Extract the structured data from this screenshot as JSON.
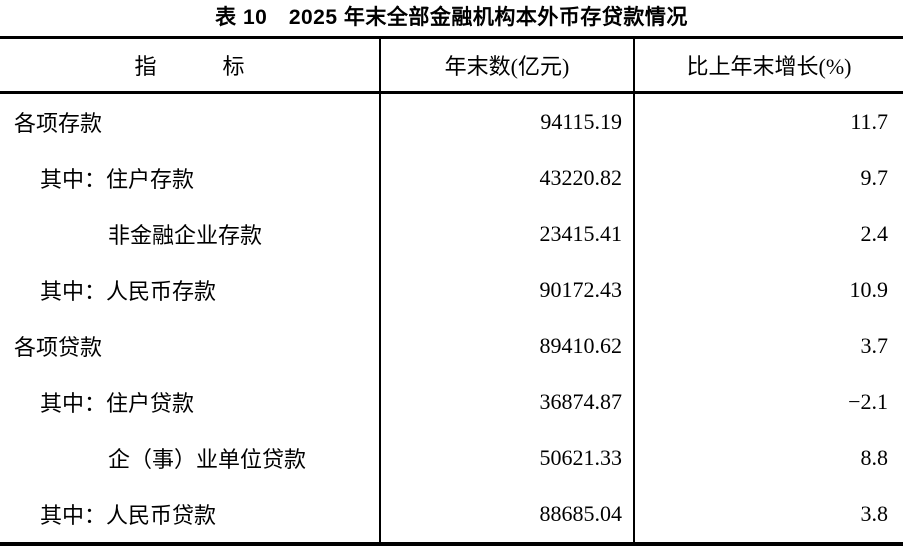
{
  "title": "表 10　2025 年末全部金融机构本外币存贷款情况",
  "table": {
    "headers": {
      "indicator": "指　　　标",
      "amount": "年末数(亿元)",
      "growth": "比上年末增长(%)"
    },
    "rows": [
      {
        "indicator": "各项存款",
        "amount": "94115.19",
        "growth": "11.7"
      },
      {
        "indicator": "其中：住户存款",
        "amount": "43220.82",
        "growth": "9.7"
      },
      {
        "indicator": "非金融企业存款",
        "amount": "23415.41",
        "growth": "2.4"
      },
      {
        "indicator": "其中：人民币存款",
        "amount": "90172.43",
        "growth": "10.9"
      },
      {
        "indicator": "各项贷款",
        "amount": "89410.62",
        "growth": "3.7"
      },
      {
        "indicator": "其中：住户贷款",
        "amount": "36874.87",
        "growth": "−2.1"
      },
      {
        "indicator": "企（事）业单位贷款",
        "amount": "50621.33",
        "growth": "8.8"
      },
      {
        "indicator": "其中：人民币贷款",
        "amount": "88685.04",
        "growth": "3.8"
      }
    ]
  },
  "colors": {
    "text": "#000000",
    "background": "#ffffff",
    "border": "#000000"
  }
}
